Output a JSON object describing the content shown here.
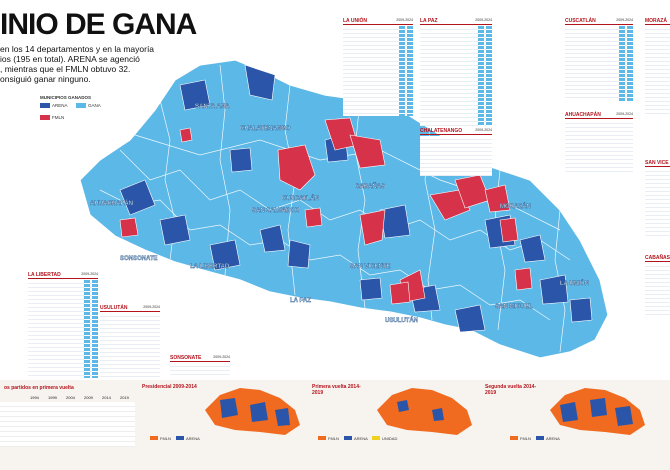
{
  "header": {
    "title": "INIO DE GANA",
    "intro_lines": [
      "en los 14 departamentos y en la mayoría",
      "ios (195 en total). ARENA se agenció",
      ", mientras que el FMLN obtuvo 32.",
      "onsiguió ganar ninguno."
    ]
  },
  "legend": {
    "title": "MUNICIPIOS GANADOS",
    "items": [
      {
        "label": "ARENA",
        "color": "#2a55a8"
      },
      {
        "label": "GANA",
        "color": "#5cb8e6"
      },
      {
        "label": "FMLN",
        "color": "#d6334a"
      }
    ]
  },
  "colors": {
    "gana": "#5cb8e6",
    "arena": "#2a55a8",
    "fmln": "#d6334a",
    "unidad": "#f0d020",
    "border": "#ffffff",
    "accent": "#b3131b",
    "orange": "#f06a20"
  },
  "departments": [
    {
      "name": "SANTA ANA"
    },
    {
      "name": "CHALATENANGO"
    },
    {
      "name": "AHUACHAPÁN"
    },
    {
      "name": "SONSONATE"
    },
    {
      "name": "LA LIBERTAD"
    },
    {
      "name": "SAN SALVADOR"
    },
    {
      "name": "CUSCATLÁN"
    },
    {
      "name": "CABAÑAS"
    },
    {
      "name": "MORAZÁN"
    },
    {
      "name": "SAN VICENTE"
    },
    {
      "name": "LA PAZ"
    },
    {
      "name": "USULUTÁN"
    },
    {
      "name": "SAN MIGUEL"
    },
    {
      "name": "LA UNIÓN"
    }
  ],
  "panels": [
    {
      "name": "LA UNIÓN",
      "years": "2009-2024"
    },
    {
      "name": "LA PAZ",
      "years": "2009-2024"
    },
    {
      "name": "CUSCATLÁN",
      "years": "2009-2024"
    },
    {
      "name": "MORAZÁ",
      "years": ""
    },
    {
      "name": "CHALATENANGO",
      "years": "2009-2024"
    },
    {
      "name": "AHUACHAPÁN",
      "years": "2009-2024"
    },
    {
      "name": "SAN VICE",
      "years": ""
    },
    {
      "name": "CABAÑAS",
      "years": ""
    },
    {
      "name": "LA LIBERTAD",
      "years": "2009-2024"
    },
    {
      "name": "USULUTÁN",
      "years": "2009-2024"
    },
    {
      "name": "SONSONATE",
      "years": "2009-2024"
    }
  ],
  "bottom": {
    "table_title": "os partidos en primera vuelta",
    "table_years": [
      "1994",
      "1999",
      "2004",
      "2009",
      "2014",
      "2019"
    ],
    "sections": [
      {
        "title": "Presidencial 2009-2014",
        "legend": [
          "FMLN",
          "ARENA"
        ]
      },
      {
        "title": "Primera vuelta 2014-2019",
        "legend": [
          "FMLN",
          "ARENA",
          "UNIDAD"
        ]
      },
      {
        "title": "Segunda vuelta 2014-2019",
        "legend": [
          "FMLN",
          "ARENA"
        ]
      }
    ]
  }
}
